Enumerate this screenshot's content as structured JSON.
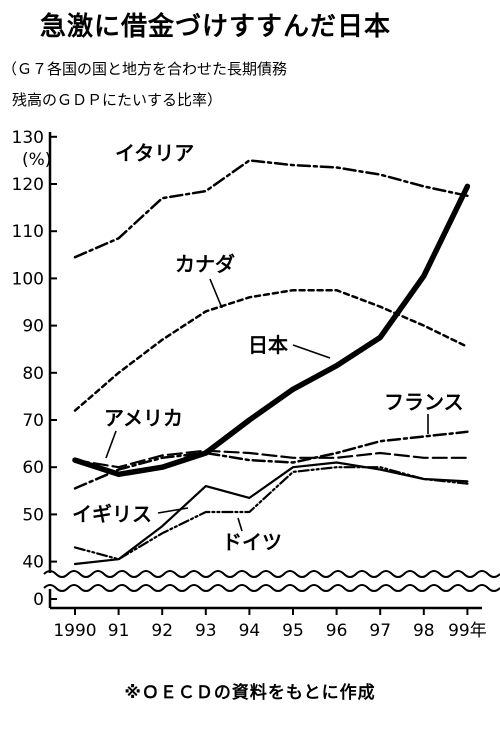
{
  "chart_data": {
    "type": "line",
    "title": "急激に借金づけすすんだ日本",
    "subtitle_line1": "（Ｇ７各国の国と地方を合わせた長期債務",
    "subtitle_line2": "残高のＧＤＰにたいする比率）",
    "y_unit": "(%)",
    "source": "※ＯＥＣＤの資料をもとに作成",
    "x": [
      "1990",
      "91",
      "92",
      "93",
      "94",
      "95",
      "96",
      "97",
      "98",
      "99年"
    ],
    "y_ticks": [
      "0",
      "40",
      "50",
      "60",
      "70",
      "80",
      "90",
      "100",
      "110",
      "120",
      "130"
    ],
    "ylim": [
      0,
      130
    ],
    "axis_break": true,
    "series": [
      {
        "name": "イタリア",
        "style": "dash-dot",
        "values": [
          104.5,
          108.5,
          117,
          118.5,
          125,
          124,
          123.5,
          122,
          119.5,
          117.5
        ]
      },
      {
        "name": "カナダ",
        "style": "dashed",
        "values": [
          72,
          80,
          87,
          93,
          96,
          97.5,
          97.5,
          94,
          90,
          85.5
        ]
      },
      {
        "name": "日本",
        "style": "bold",
        "values": [
          61.5,
          58.5,
          60,
          63,
          70,
          76.5,
          81.5,
          87.5,
          100.5,
          119.5
        ]
      },
      {
        "name": "フランス",
        "style": "dash-dot",
        "values": [
          55.5,
          59.5,
          62,
          63,
          61.5,
          61,
          63,
          65.5,
          66.5,
          67.5
        ]
      },
      {
        "name": "アメリカ",
        "style": "long-dash",
        "values": [
          61.5,
          60,
          62.5,
          63.5,
          63,
          62,
          62,
          63,
          62,
          62
        ]
      },
      {
        "name": "イギリス",
        "style": "solid",
        "values": [
          39.5,
          40.5,
          47.5,
          56,
          53.5,
          60,
          61,
          59.5,
          57.5,
          57
        ]
      },
      {
        "name": "ドイツ",
        "style": "dash-dot-dot",
        "values": [
          43,
          40.5,
          46,
          50.5,
          50.5,
          59,
          60,
          60,
          57.5,
          56.5
        ]
      }
    ]
  }
}
